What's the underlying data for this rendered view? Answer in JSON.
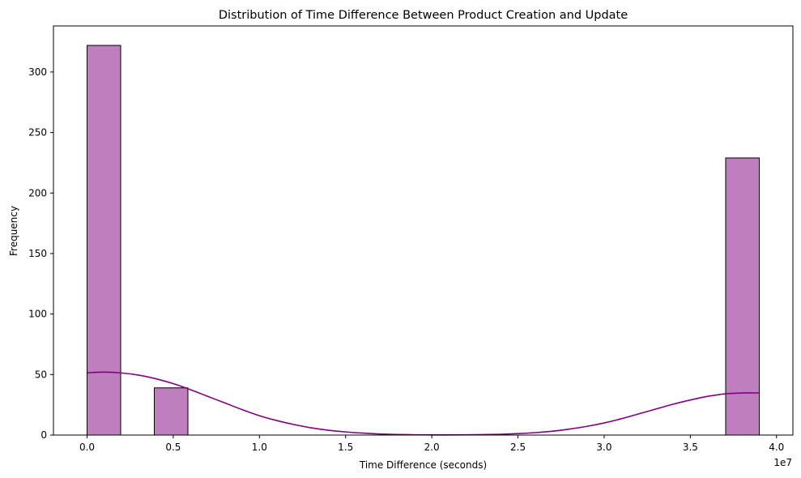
{
  "chart_data": {
    "type": "bar",
    "title": "Distribution of Time Difference Between Product Creation and Update",
    "xlabel": "Time Difference (seconds)",
    "ylabel": "Frequency",
    "x_offset_label": "1e7",
    "xlim": [
      -0.195,
      4.095
    ],
    "ylim": [
      0,
      338.1
    ],
    "x_ticks": [
      0.0,
      0.5,
      1.0,
      1.5,
      2.0,
      2.5,
      3.0,
      3.5,
      4.0
    ],
    "x_tick_labels": [
      "0.0",
      "0.5",
      "1.0",
      "1.5",
      "2.0",
      "2.5",
      "3.0",
      "3.5",
      "4.0"
    ],
    "y_ticks": [
      0,
      50,
      100,
      150,
      200,
      250,
      300
    ],
    "y_tick_labels": [
      "0",
      "50",
      "100",
      "150",
      "200",
      "250",
      "300"
    ],
    "bin_width": 0.195,
    "bars": [
      {
        "x_start": 0.0,
        "value": 322
      },
      {
        "x_start": 0.195,
        "value": 0
      },
      {
        "x_start": 0.39,
        "value": 39
      },
      {
        "x_start": 0.585,
        "value": 0
      },
      {
        "x_start": 0.78,
        "value": 0
      },
      {
        "x_start": 0.975,
        "value": 0
      },
      {
        "x_start": 1.17,
        "value": 0
      },
      {
        "x_start": 1.365,
        "value": 0
      },
      {
        "x_start": 1.56,
        "value": 0
      },
      {
        "x_start": 1.755,
        "value": 0
      },
      {
        "x_start": 1.95,
        "value": 0
      },
      {
        "x_start": 2.145,
        "value": 0
      },
      {
        "x_start": 2.34,
        "value": 0
      },
      {
        "x_start": 2.535,
        "value": 0
      },
      {
        "x_start": 2.73,
        "value": 0
      },
      {
        "x_start": 2.925,
        "value": 0
      },
      {
        "x_start": 3.12,
        "value": 0
      },
      {
        "x_start": 3.315,
        "value": 0
      },
      {
        "x_start": 3.51,
        "value": 0
      },
      {
        "x_start": 3.705,
        "value": 229
      }
    ],
    "kde_points": [
      [
        0.0,
        51.5
      ],
      [
        0.1,
        52.0
      ],
      [
        0.2,
        51.3
      ],
      [
        0.3,
        49.5
      ],
      [
        0.4,
        46.5
      ],
      [
        0.5,
        42.5
      ],
      [
        0.6,
        37.5
      ],
      [
        0.7,
        32.0
      ],
      [
        0.8,
        26.5
      ],
      [
        0.9,
        21.0
      ],
      [
        1.0,
        16.0
      ],
      [
        1.1,
        12.0
      ],
      [
        1.2,
        8.7
      ],
      [
        1.3,
        6.0
      ],
      [
        1.4,
        4.0
      ],
      [
        1.5,
        2.6
      ],
      [
        1.6,
        1.6
      ],
      [
        1.7,
        0.9
      ],
      [
        1.8,
        0.5
      ],
      [
        1.9,
        0.25
      ],
      [
        2.0,
        0.12
      ],
      [
        2.1,
        0.12
      ],
      [
        2.2,
        0.18
      ],
      [
        2.3,
        0.35
      ],
      [
        2.4,
        0.65
      ],
      [
        2.5,
        1.2
      ],
      [
        2.6,
        2.0
      ],
      [
        2.7,
        3.2
      ],
      [
        2.8,
        5.0
      ],
      [
        2.9,
        7.2
      ],
      [
        3.0,
        10.0
      ],
      [
        3.1,
        13.5
      ],
      [
        3.2,
        17.5
      ],
      [
        3.3,
        21.5
      ],
      [
        3.4,
        25.5
      ],
      [
        3.5,
        29.0
      ],
      [
        3.6,
        32.0
      ],
      [
        3.7,
        34.0
      ],
      [
        3.8,
        34.8
      ],
      [
        3.9,
        34.8
      ]
    ],
    "colors": {
      "bar_fill": "#bf7fbf",
      "bar_stroke": "#000000",
      "kde_line": "#800080",
      "axes": "#000000",
      "background": "#ffffff"
    },
    "grid": false,
    "legend": "none"
  }
}
